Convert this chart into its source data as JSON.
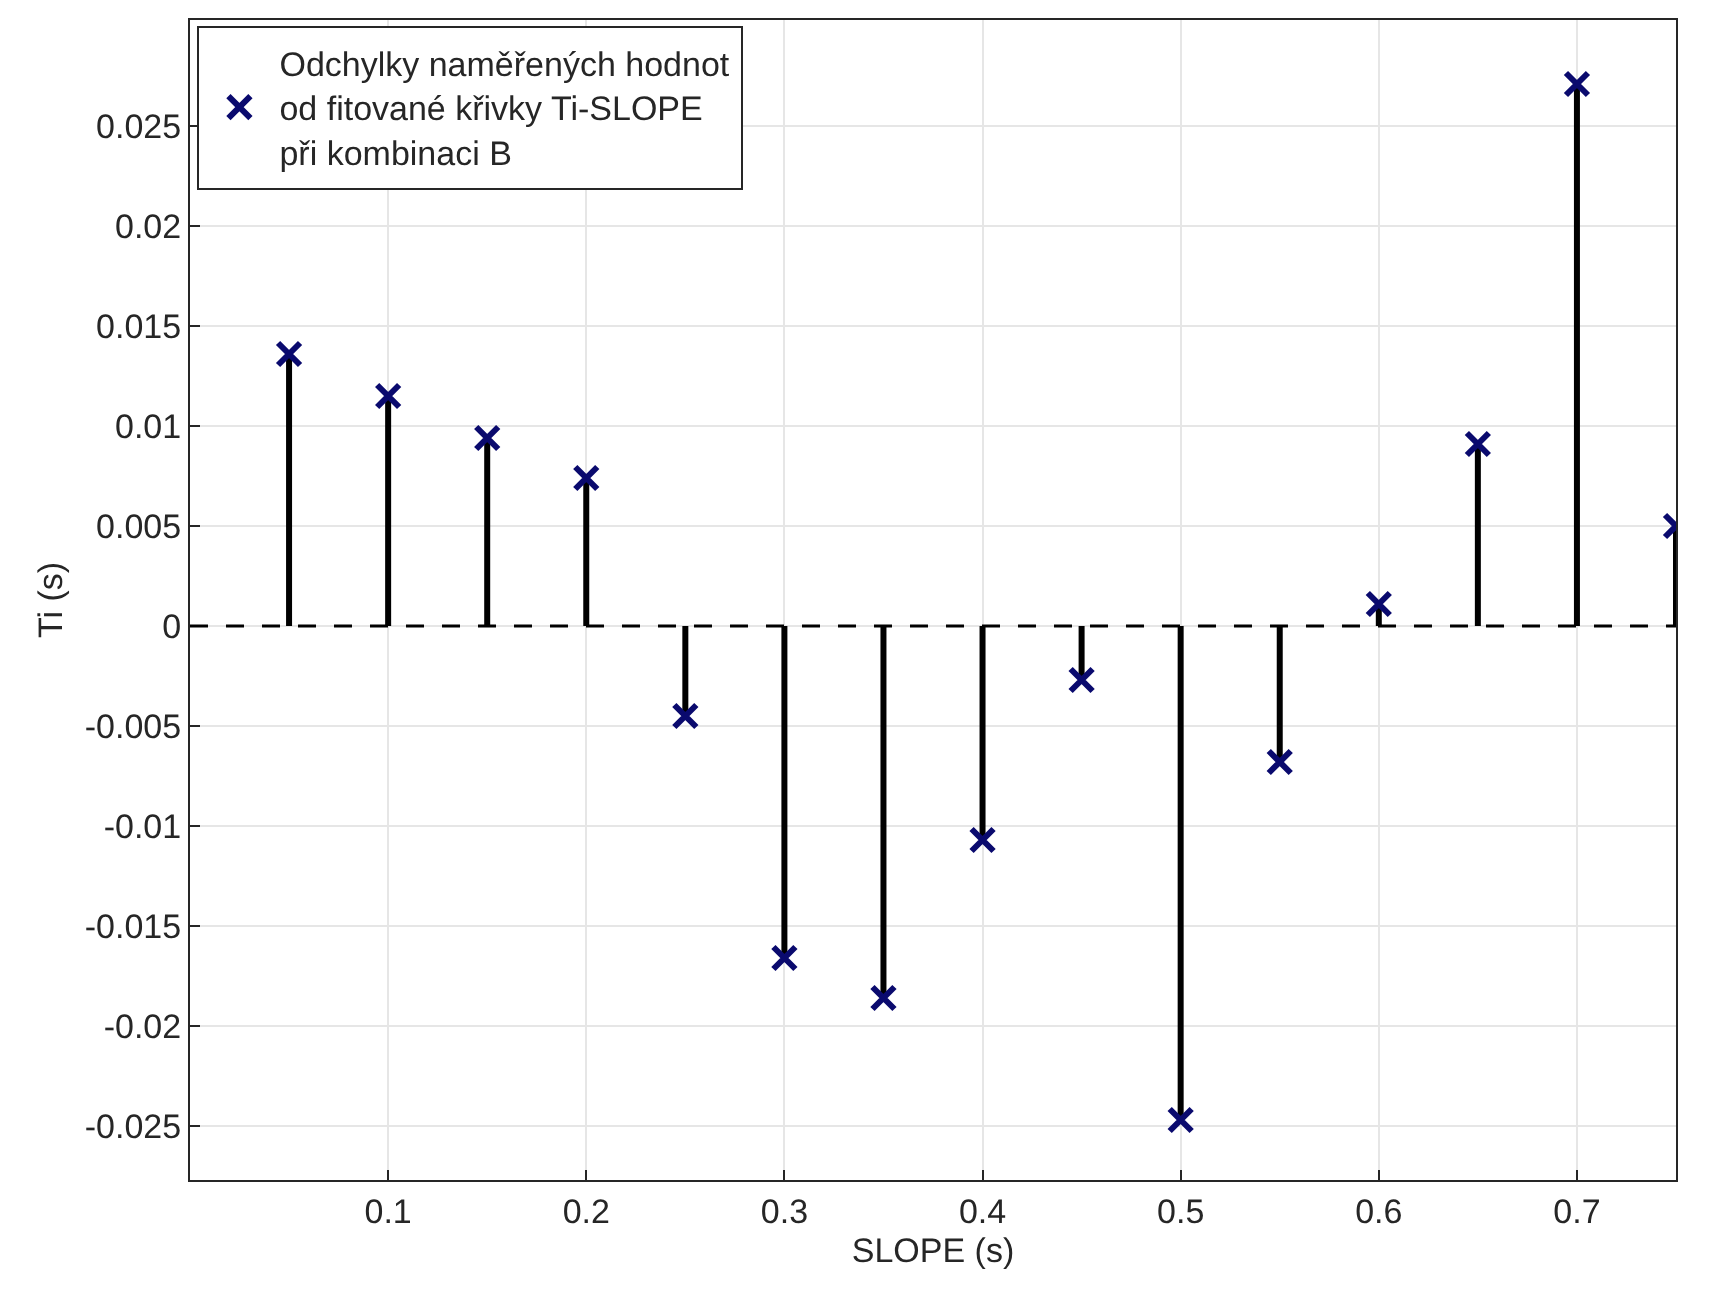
{
  "chart_data": {
    "type": "lollipop",
    "xlabel": "SLOPE (s)",
    "ylabel": "Ti (s)",
    "x": [
      0.05,
      0.1,
      0.15,
      0.2,
      0.25,
      0.3,
      0.35,
      0.4,
      0.45,
      0.5,
      0.55,
      0.6,
      0.65,
      0.7,
      0.75
    ],
    "series": [
      {
        "name": "Odchylky naměřených hodnot\nod fitované křivky Ti-SLOPE\npři kombinaci B",
        "color": "#0a0a6e",
        "values": [
          0.0136,
          0.0115,
          0.0094,
          0.0074,
          -0.0045,
          -0.0166,
          -0.0186,
          -0.0107,
          -0.0027,
          -0.0247,
          -0.0068,
          0.0011,
          0.0091,
          0.0271,
          0.005
        ]
      }
    ],
    "xlim": [
      0,
      0.75
    ],
    "ylim": [
      -0.0277,
      0.0303
    ],
    "xticks": [
      0.1,
      0.2,
      0.3,
      0.4,
      0.5,
      0.6,
      0.7
    ],
    "yticks": [
      -0.025,
      -0.02,
      -0.015,
      -0.01,
      -0.005,
      0,
      0.005,
      0.01,
      0.015,
      0.02,
      0.025
    ],
    "ref_lines": [
      {
        "axis": "y",
        "value": 0,
        "line_style": "dashed",
        "color": "#000000"
      }
    ],
    "grid": true,
    "legend": "top left",
    "marker": "cross"
  }
}
